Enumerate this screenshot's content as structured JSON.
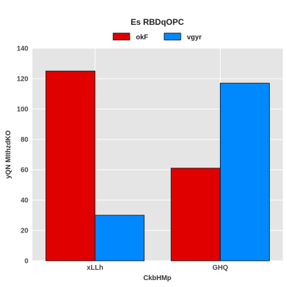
{
  "chart_data": {
    "type": "bar",
    "title": "Es RBDqOPC",
    "xlabel": "CkbHMp",
    "ylabel": "yQN MIthzdKO",
    "categories": [
      "xLLh",
      "GHQ"
    ],
    "series": [
      {
        "name": "okF",
        "values": [
          125,
          61
        ],
        "color": "#e00000"
      },
      {
        "name": "vgyr",
        "values": [
          30,
          117
        ],
        "color": "#0088ff"
      }
    ],
    "ylim": [
      0,
      140
    ],
    "yticks": [
      0,
      20,
      40,
      60,
      80,
      100,
      120,
      140
    ],
    "grid": true,
    "legend_position": "top-center",
    "background_color": "#e5e5e5",
    "grid_color": "#ffffff"
  }
}
